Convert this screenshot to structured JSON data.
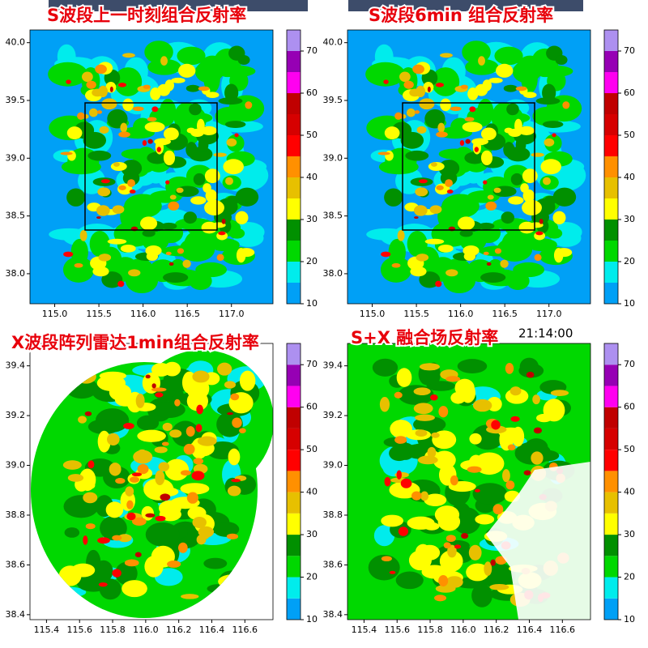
{
  "panels": [
    {
      "title": "S波段上一时刻组合反射率",
      "xlim": [
        114.72,
        117.47
      ],
      "ylim": [
        37.74,
        40.11
      ],
      "xticks": [
        {
          "value": 115,
          "label": "115.0"
        },
        {
          "value": 115.5,
          "label": "115.5"
        },
        {
          "value": 116,
          "label": "116.0"
        },
        {
          "value": 116.5,
          "label": "116.5"
        },
        {
          "value": 117,
          "label": "117.0"
        }
      ],
      "yticks": [
        {
          "value": 40,
          "label": "40.0"
        },
        {
          "value": 39.5,
          "label": "39.5"
        },
        {
          "value": 39,
          "label": "39.0"
        },
        {
          "value": 38.5,
          "label": "38.5"
        },
        {
          "value": 38,
          "label": "38.0"
        }
      ]
    },
    {
      "title": "S波段6min 组合反射率",
      "xlim": [
        114.72,
        117.47
      ],
      "ylim": [
        37.74,
        40.11
      ],
      "xticks": [
        {
          "value": 115,
          "label": "115.0"
        },
        {
          "value": 115.5,
          "label": "115.5"
        },
        {
          "value": 116,
          "label": "116.0"
        },
        {
          "value": 116.5,
          "label": "116.5"
        },
        {
          "value": 117,
          "label": "117.0"
        }
      ],
      "yticks": [
        {
          "value": 40,
          "label": "40.0"
        },
        {
          "value": 39.5,
          "label": "39.5"
        },
        {
          "value": 39,
          "label": "39.0"
        },
        {
          "value": 38.5,
          "label": "38.5"
        },
        {
          "value": 38,
          "label": "38.0"
        }
      ]
    },
    {
      "title": "X波段阵列雷达1min组合反射率",
      "xlim": [
        115.3,
        116.77
      ],
      "ylim": [
        38.38,
        39.49
      ],
      "xticks": [
        115.4,
        115.6,
        115.8,
        {
          "value": 116,
          "label": "116.0"
        },
        116.2,
        116.4,
        116.6
      ],
      "yticks": [
        39.4,
        39.2,
        {
          "value": 39,
          "label": "39.0"
        },
        38.8,
        38.6,
        38.4
      ]
    },
    {
      "title": "S+X 融合场反射率",
      "time": "21:14:00",
      "xlim": [
        115.3,
        116.77
      ],
      "ylim": [
        38.38,
        39.49
      ],
      "xticks": [
        115.4,
        115.6,
        115.8,
        {
          "value": 116,
          "label": "116.0"
        },
        116.2,
        116.4,
        116.6
      ],
      "yticks": [
        39.4,
        39.2,
        {
          "value": 39,
          "label": "39.0"
        },
        38.8,
        38.6,
        38.4
      ]
    }
  ],
  "colorbar": {
    "lim": [
      10,
      75
    ],
    "ticks": [
      10,
      20,
      30,
      40,
      50,
      60,
      70
    ],
    "colors": [
      "#00a0f6",
      "#00ecec",
      "#00d800",
      "#019000",
      "#ffff00",
      "#e7c000",
      "#ff9000",
      "#ff0000",
      "#d60000",
      "#c00000",
      "#ff00f0",
      "#9600b4",
      "#ad90f0"
    ]
  }
}
